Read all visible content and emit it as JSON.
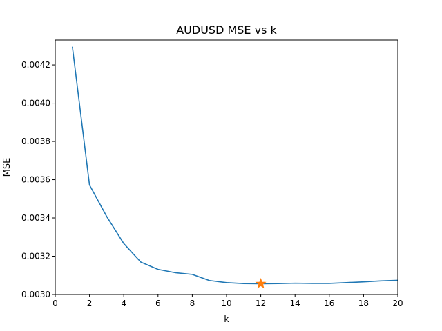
{
  "chart_data": {
    "type": "line",
    "title": "AUDUSD MSE vs k",
    "xlabel": "k",
    "ylabel": "MSE",
    "xlim": [
      0,
      20
    ],
    "ylim": [
      0.003,
      0.00433
    ],
    "x_ticks": [
      0,
      2,
      4,
      6,
      8,
      10,
      12,
      14,
      16,
      18,
      20
    ],
    "x_tick_labels": [
      "0",
      "2",
      "4",
      "6",
      "8",
      "10",
      "12",
      "14",
      "16",
      "18",
      "20"
    ],
    "y_ticks": [
      0.003,
      0.0032,
      0.0034,
      0.0036,
      0.0038,
      0.004,
      0.0042
    ],
    "y_tick_labels": [
      "0.0030",
      "0.0032",
      "0.0034",
      "0.0036",
      "0.0038",
      "0.0040",
      "0.0042"
    ],
    "grid": false,
    "series": [
      {
        "color": "#1f77b4",
        "x": [
          1,
          2,
          3,
          4,
          5,
          6,
          7,
          8,
          9,
          10,
          11,
          12,
          13,
          14,
          15,
          16,
          17,
          18,
          19,
          20
        ],
        "values": [
          0.004295,
          0.003572,
          0.003408,
          0.003266,
          0.003169,
          0.003131,
          0.003114,
          0.003105,
          0.003073,
          0.003062,
          0.003057,
          0.003056,
          0.003057,
          0.003059,
          0.003058,
          0.003058,
          0.003062,
          0.003066,
          0.003071,
          0.003074
        ]
      }
    ],
    "highlight": {
      "marker": "star",
      "color": "#ff7f0e",
      "x": 12,
      "y": 0.003056
    }
  }
}
